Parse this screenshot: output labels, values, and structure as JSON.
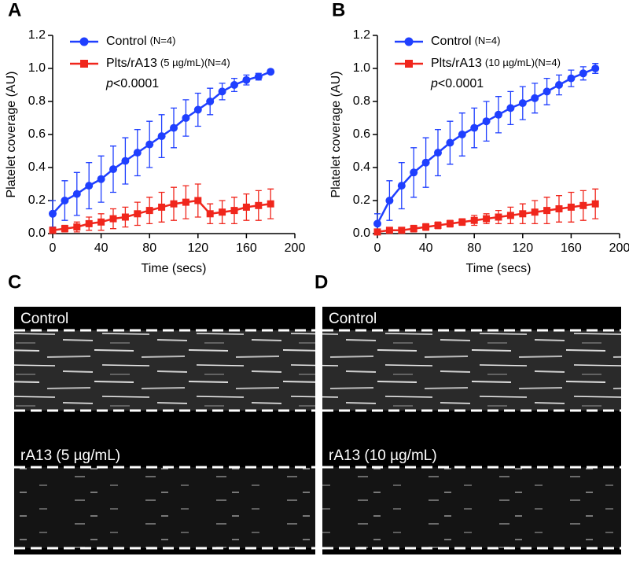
{
  "chart_data": [
    {
      "type": "line",
      "panel": "A",
      "ylabel": "Platelet coverage (AU)",
      "xlabel": "Time (secs)",
      "annotation": [
        "p",
        "<0.0001"
      ],
      "x": [
        0,
        10,
        20,
        30,
        40,
        50,
        60,
        70,
        80,
        90,
        100,
        110,
        120,
        130,
        140,
        150,
        160,
        170,
        180
      ],
      "xlim": [
        0,
        200
      ],
      "xticks": [
        0,
        40,
        80,
        120,
        160,
        200
      ],
      "ylim": [
        0,
        1.2
      ],
      "yticks": [
        {
          "value": 0,
          "label": "0.0"
        },
        0.2,
        0.4,
        0.6,
        0.8,
        {
          "value": 1,
          "label": "1.0"
        },
        1.2
      ],
      "series": [
        {
          "name": "Control",
          "note": "(N=4)",
          "color": "#1f3fff",
          "marker": "circle",
          "values": [
            0.12,
            0.2,
            0.24,
            0.29,
            0.33,
            0.39,
            0.44,
            0.49,
            0.54,
            0.59,
            0.64,
            0.7,
            0.75,
            0.8,
            0.86,
            0.9,
            0.93,
            0.95,
            0.98
          ],
          "errors": [
            0.08,
            0.12,
            0.13,
            0.14,
            0.14,
            0.14,
            0.14,
            0.14,
            0.14,
            0.13,
            0.12,
            0.11,
            0.1,
            0.08,
            0.05,
            0.04,
            0.03,
            0.02,
            0.01
          ]
        },
        {
          "name": "Plts/rA13",
          "note": "(5 µg/mL)(N=4)",
          "color": "#f0261c",
          "marker": "square",
          "values": [
            0.02,
            0.03,
            0.04,
            0.06,
            0.07,
            0.09,
            0.1,
            0.12,
            0.14,
            0.16,
            0.18,
            0.19,
            0.2,
            0.12,
            0.13,
            0.14,
            0.16,
            0.17,
            0.18
          ],
          "errors": [
            0.01,
            0.02,
            0.03,
            0.04,
            0.05,
            0.06,
            0.06,
            0.07,
            0.08,
            0.09,
            0.1,
            0.1,
            0.1,
            0.06,
            0.07,
            0.08,
            0.08,
            0.09,
            0.09
          ]
        }
      ]
    },
    {
      "type": "line",
      "panel": "B",
      "ylabel": "Platelet coverage (AU)",
      "xlabel": "Time (secs)",
      "annotation": [
        "p",
        "<0.0001"
      ],
      "x": [
        0,
        10,
        20,
        30,
        40,
        50,
        60,
        70,
        80,
        90,
        100,
        110,
        120,
        130,
        140,
        150,
        160,
        170,
        180
      ],
      "xlim": [
        0,
        200
      ],
      "xticks": [
        0,
        40,
        80,
        120,
        160,
        200
      ],
      "ylim": [
        0,
        1.2
      ],
      "yticks": [
        {
          "value": 0,
          "label": "0.0"
        },
        0.2,
        0.4,
        0.6,
        0.8,
        {
          "value": 1,
          "label": "1.0"
        },
        1.2
      ],
      "series": [
        {
          "name": "Control",
          "note": "(N=4)",
          "color": "#1f3fff",
          "marker": "circle",
          "values": [
            0.06,
            0.2,
            0.29,
            0.37,
            0.43,
            0.49,
            0.55,
            0.6,
            0.64,
            0.68,
            0.72,
            0.76,
            0.79,
            0.82,
            0.86,
            0.9,
            0.94,
            0.97,
            1.0
          ],
          "errors": [
            0.06,
            0.12,
            0.14,
            0.15,
            0.15,
            0.14,
            0.13,
            0.13,
            0.12,
            0.12,
            0.11,
            0.1,
            0.1,
            0.09,
            0.08,
            0.06,
            0.05,
            0.04,
            0.03
          ]
        },
        {
          "name": "Plts/rA13",
          "note": "(10 µg/mL)(N=4)",
          "color": "#f0261c",
          "marker": "square",
          "values": [
            0.01,
            0.02,
            0.02,
            0.03,
            0.04,
            0.05,
            0.06,
            0.07,
            0.08,
            0.09,
            0.1,
            0.11,
            0.12,
            0.13,
            0.14,
            0.15,
            0.16,
            0.17,
            0.18
          ],
          "errors": [
            0.01,
            0.01,
            0.01,
            0.02,
            0.02,
            0.02,
            0.02,
            0.02,
            0.03,
            0.03,
            0.04,
            0.05,
            0.06,
            0.07,
            0.08,
            0.08,
            0.09,
            0.09,
            0.09
          ]
        }
      ]
    }
  ],
  "images": [
    {
      "panel": "C",
      "labels": [
        "Control",
        "rA13 (5 µg/mL)"
      ]
    },
    {
      "panel": "D",
      "labels": [
        "Control",
        "rA13 (10 µg/mL)"
      ]
    }
  ]
}
